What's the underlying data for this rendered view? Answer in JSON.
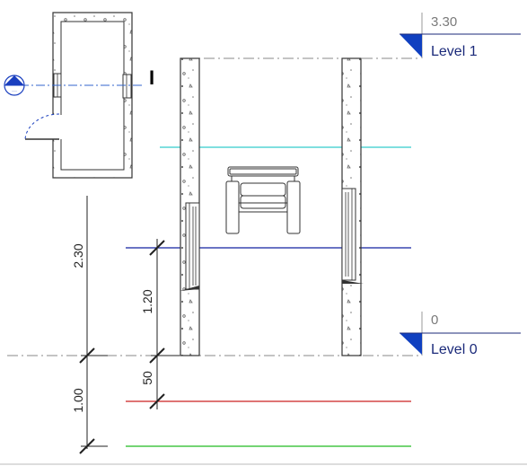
{
  "levels": [
    {
      "name": "Level 1",
      "elevation": "3.30"
    },
    {
      "name": "Level 0",
      "elevation": "0"
    }
  ],
  "dimensions": {
    "overall": "2.30",
    "window_height": "1.20",
    "sill_offset": "50",
    "lower": "1.00"
  },
  "section_marker": "I",
  "colors": {
    "reference_cyan": "#33cccc",
    "reference_blue": "#1020a0",
    "reference_red": "#cc2222",
    "reference_green": "#22bb22",
    "level_head": "#1040c0",
    "level_text": "#1b2a7a",
    "section_line": "#3366cc"
  },
  "icons": [
    "level-head-icon",
    "section-head-icon",
    "window-icon",
    "furniture-icon",
    "door-swing-icon"
  ]
}
